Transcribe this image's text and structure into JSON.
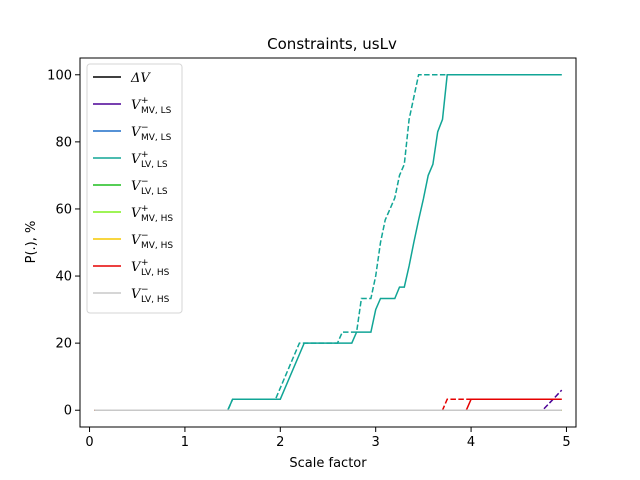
{
  "chart_data": {
    "type": "line",
    "title": "Constraints, usLv",
    "xlabel": "Scale factor",
    "ylabel": "P(.), %",
    "xlim": [
      -0.1,
      5.1
    ],
    "ylim": [
      -5,
      105
    ],
    "xticks": [
      0,
      1,
      2,
      3,
      4,
      5
    ],
    "yticks": [
      0,
      20,
      40,
      60,
      80,
      100
    ],
    "grid": false,
    "legend_position": "top-left",
    "series": [
      {
        "name": "ΔV",
        "name_main": "ΔV",
        "name_sup": "",
        "name_sub": "",
        "color": "#000000",
        "solid": {
          "x": [
            0.05,
            4.95
          ],
          "y": [
            0,
            0
          ]
        },
        "dashed": {
          "x": [
            0.05,
            4.95
          ],
          "y": [
            0,
            0
          ]
        }
      },
      {
        "name": "V+MV,LS",
        "name_main": "V",
        "name_sup": "+",
        "name_sub": "MV, LS",
        "color": "#4b0096",
        "solid": {
          "x": [
            0.05,
            4.95
          ],
          "y": [
            0,
            0
          ]
        },
        "dashed": {
          "x": [
            0.05,
            4.75,
            4.85,
            4.95
          ],
          "y": [
            0,
            0,
            3,
            6
          ]
        }
      },
      {
        "name": "V-MV,LS",
        "name_main": "V",
        "name_sup": "−",
        "name_sub": "MV, LS",
        "color": "#1f6fc8",
        "solid": {
          "x": [
            0.05,
            4.95
          ],
          "y": [
            0,
            0
          ]
        },
        "dashed": {
          "x": [
            0.05,
            4.95
          ],
          "y": [
            0,
            0
          ]
        }
      },
      {
        "name": "V+LV,LS",
        "name_main": "V",
        "name_sup": "+",
        "name_sub": "LV, LS",
        "color": "#11a596",
        "solid": {
          "x": [
            0.05,
            1.45,
            1.5,
            2.0,
            2.25,
            2.3,
            2.75,
            2.8,
            2.95,
            3.0,
            3.05,
            3.1,
            3.15,
            3.2,
            3.25,
            3.3,
            3.35,
            3.4,
            3.45,
            3.5,
            3.55,
            3.6,
            3.65,
            3.7,
            3.75,
            4.95
          ],
          "y": [
            0,
            0,
            3.3,
            3.3,
            20,
            20,
            20,
            23.3,
            23.3,
            30,
            33.3,
            33.3,
            33.3,
            33.3,
            36.7,
            36.7,
            43,
            50,
            56.7,
            63,
            70,
            73.3,
            83,
            86.7,
            100,
            100
          ]
        },
        "dashed": {
          "x": [
            0.05,
            1.45,
            1.5,
            1.95,
            2.2,
            2.25,
            2.6,
            2.65,
            2.8,
            2.85,
            2.95,
            3.0,
            3.05,
            3.1,
            3.15,
            3.2,
            3.25,
            3.3,
            3.35,
            3.45,
            4.95
          ],
          "y": [
            0,
            0,
            3.3,
            3.3,
            20,
            20,
            20,
            23.3,
            23.3,
            33.3,
            33.3,
            40,
            50,
            56.7,
            60,
            63.3,
            70,
            73.3,
            86.7,
            100,
            100
          ]
        }
      },
      {
        "name": "V-LV,LS",
        "name_main": "V",
        "name_sup": "−",
        "name_sub": "LV, LS",
        "color": "#1fbe1f",
        "solid": {
          "x": [
            0.05,
            4.95
          ],
          "y": [
            0,
            0
          ]
        },
        "dashed": {
          "x": [
            0.05,
            4.95
          ],
          "y": [
            0,
            0
          ]
        }
      },
      {
        "name": "V+MV,HS",
        "name_main": "V",
        "name_sup": "+",
        "name_sub": "MV, HS",
        "color": "#7ff01f",
        "solid": {
          "x": [
            0.05,
            4.95
          ],
          "y": [
            0,
            0
          ]
        },
        "dashed": {
          "x": [
            0.05,
            4.95
          ],
          "y": [
            0,
            0
          ]
        }
      },
      {
        "name": "V-MV,HS",
        "name_main": "V",
        "name_sup": "−",
        "name_sub": "MV, HS",
        "color": "#f5c800",
        "solid": {
          "x": [
            0.05,
            4.95
          ],
          "y": [
            0,
            0
          ]
        },
        "dashed": {
          "x": [
            0.05,
            4.95
          ],
          "y": [
            0,
            0
          ]
        }
      },
      {
        "name": "V+LV,HS",
        "name_main": "V",
        "name_sup": "+",
        "name_sub": "LV, HS",
        "color": "#e60000",
        "solid": {
          "x": [
            0.05,
            3.95,
            4.0,
            4.95
          ],
          "y": [
            0,
            0,
            3.3,
            3.3
          ]
        },
        "dashed": {
          "x": [
            0.05,
            3.7,
            3.75,
            4.95
          ],
          "y": [
            0,
            0,
            3.3,
            3.3
          ]
        }
      },
      {
        "name": "V-LV,HS",
        "name_main": "V",
        "name_sup": "−",
        "name_sub": "LV, HS",
        "color": "#c8c8c8",
        "solid": {
          "x": [
            0.05,
            4.95
          ],
          "y": [
            0,
            0
          ]
        },
        "dashed": {
          "x": [
            0.05,
            4.95
          ],
          "y": [
            0,
            0
          ]
        }
      }
    ]
  }
}
